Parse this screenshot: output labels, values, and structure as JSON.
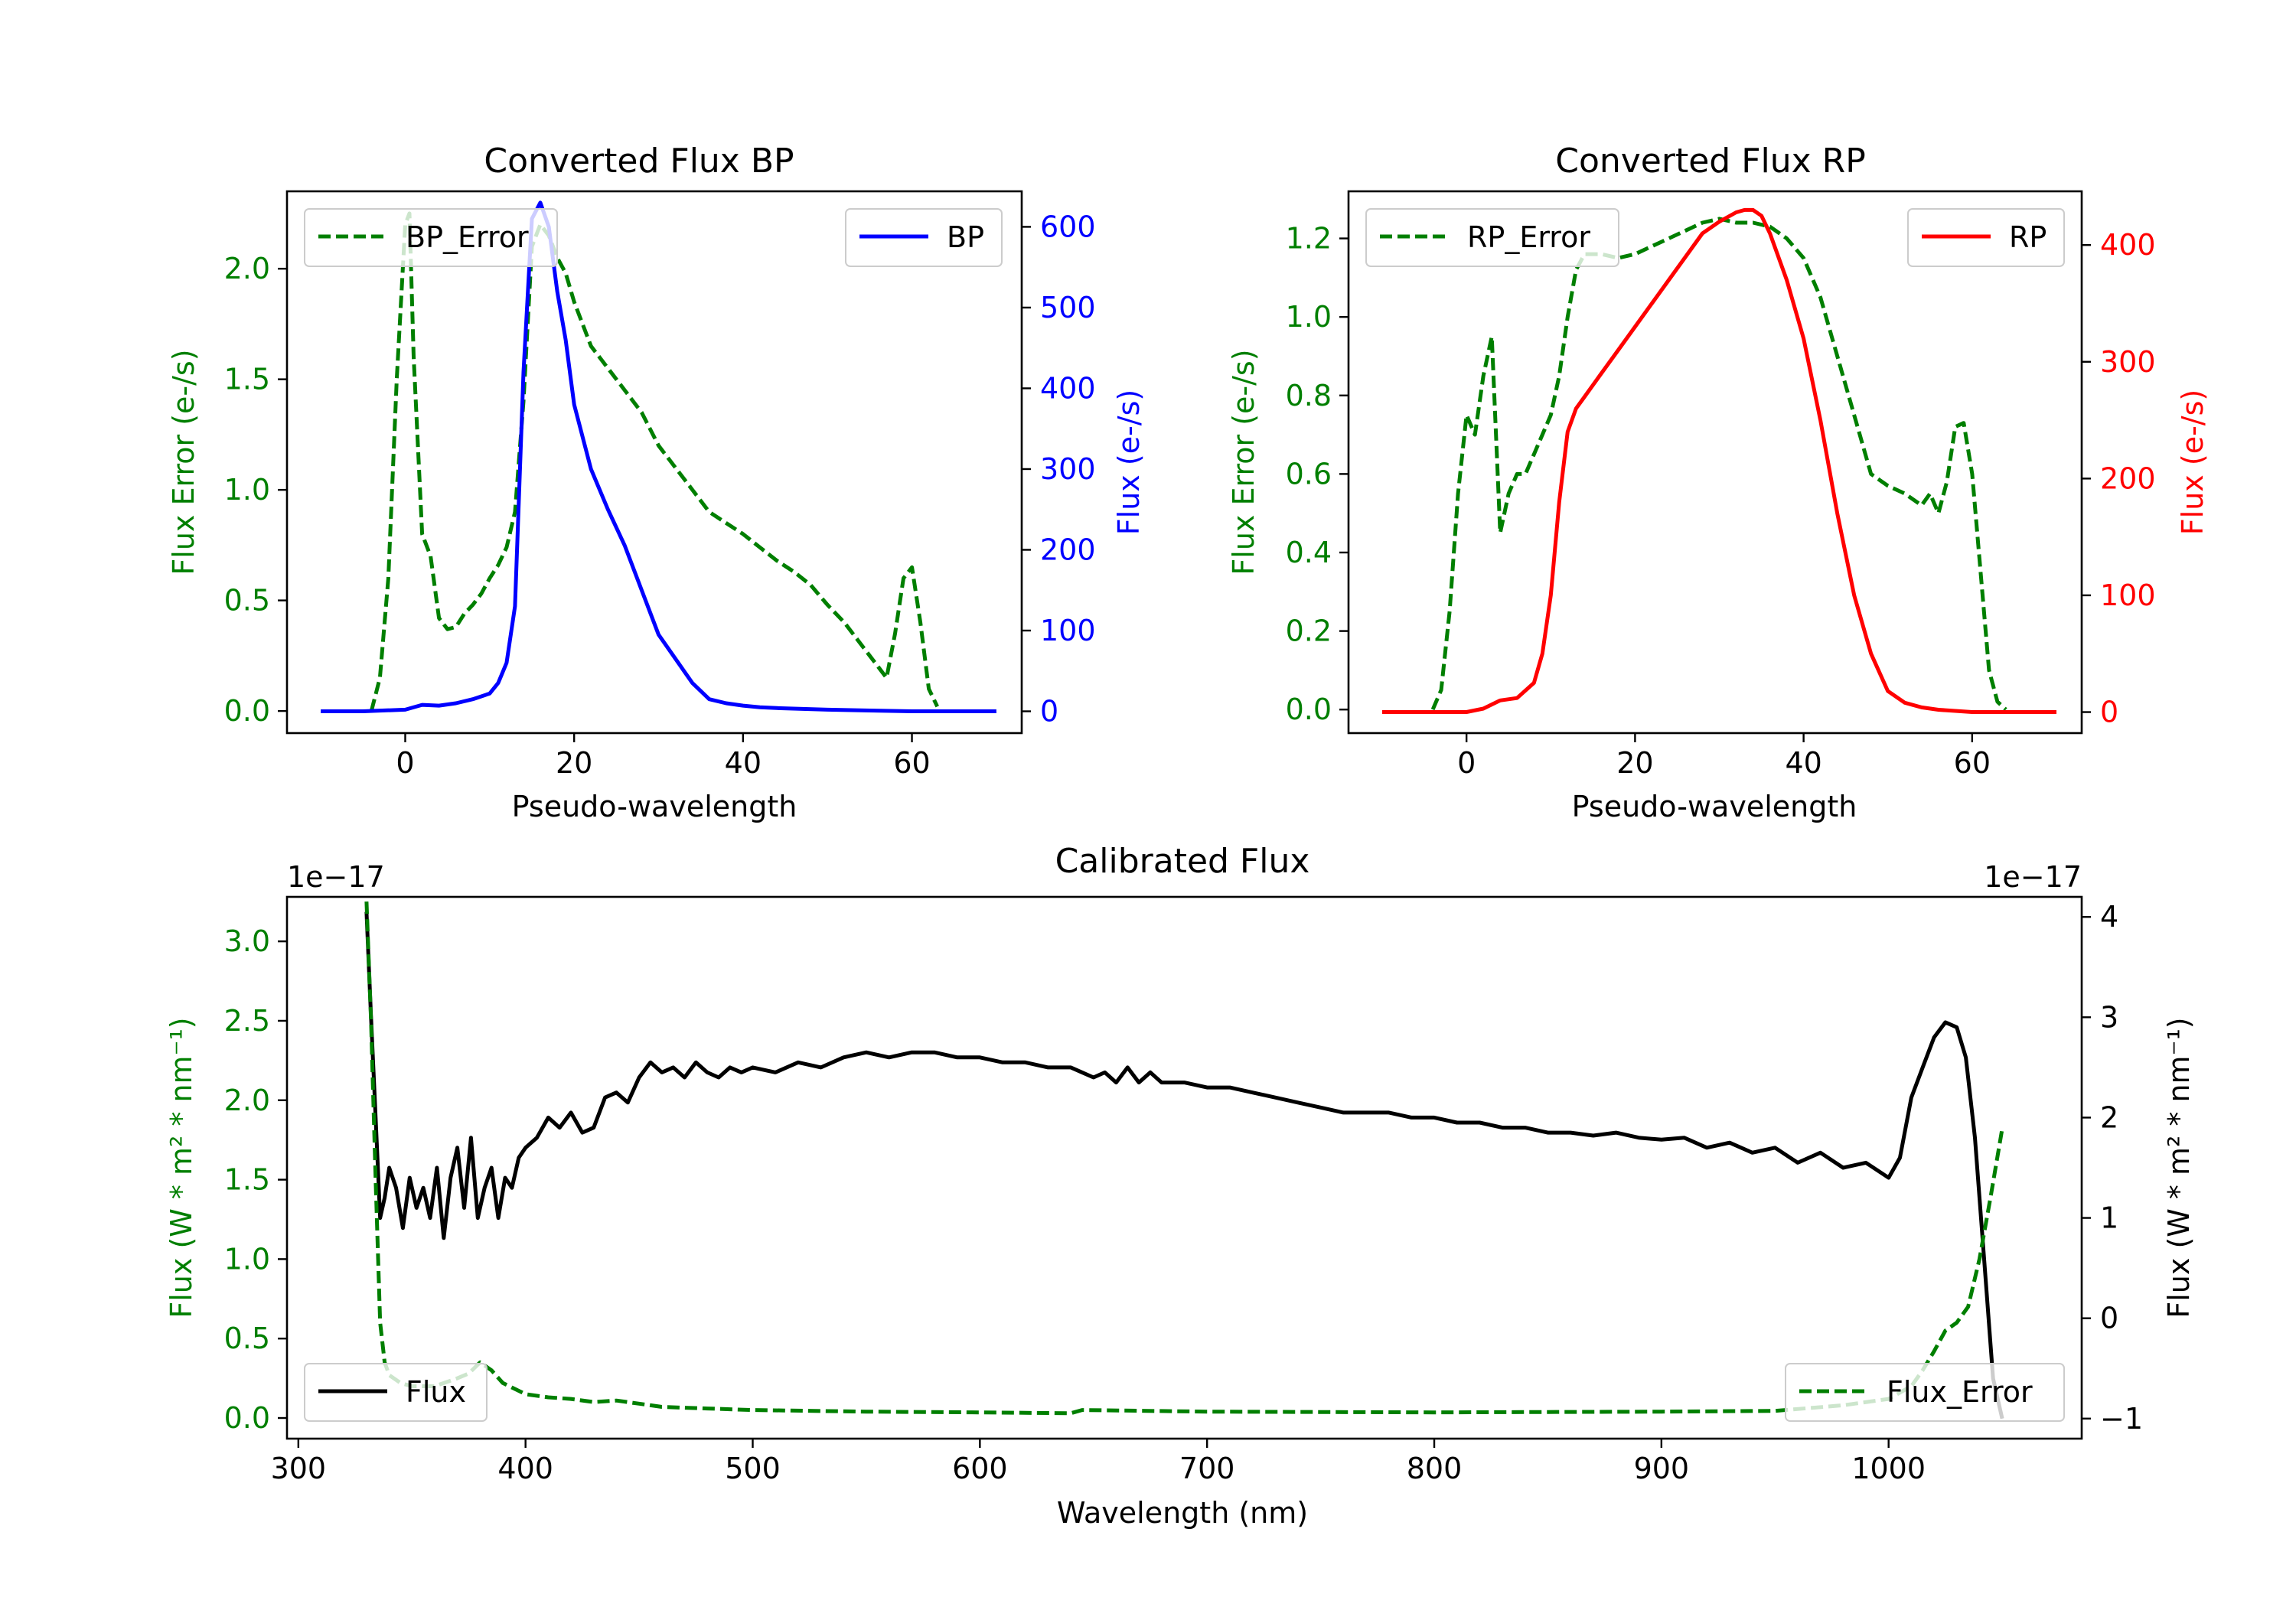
{
  "colors": {
    "error": "#007f00",
    "bp": "#0000ff",
    "rp": "#ff0000",
    "flux": "#000000",
    "axis": "#000000"
  },
  "chart_data": [
    {
      "id": "bp",
      "type": "line",
      "title": "Converted Flux BP",
      "xlabel": "Pseudo-wavelength",
      "ylabel_left": "Flux Error (e-/s)",
      "ylabel_right": "Flux (e-/s)",
      "xlim": [
        -14,
        73
      ],
      "xticks": [
        0,
        20,
        40,
        60
      ],
      "ylim_left": [
        -0.1,
        2.35
      ],
      "yticks_left": [
        0.0,
        0.5,
        1.0,
        1.5,
        2.0
      ],
      "ytick_labels_left": [
        "0.0",
        "0.5",
        "1.0",
        "1.5",
        "2.0"
      ],
      "ylim_right": [
        -27,
        644
      ],
      "yticks_right": [
        0,
        100,
        200,
        300,
        400,
        500,
        600
      ],
      "legend_left": "BP_Error",
      "legend_right": "BP",
      "series": [
        {
          "name": "BP_Error",
          "axis": "left",
          "style": "dashed",
          "color_key": "error",
          "x": [
            -4,
            -3,
            -2,
            -1,
            0,
            0.5,
            1,
            2,
            3,
            4,
            5,
            6,
            7,
            8,
            9,
            10,
            11,
            12,
            13,
            14,
            15,
            16,
            17,
            18,
            19,
            20,
            22,
            24,
            26,
            28,
            30,
            32,
            34,
            36,
            38,
            40,
            42,
            44,
            46,
            48,
            50,
            52,
            54,
            56,
            57,
            58,
            59,
            60,
            61,
            62,
            63
          ],
          "y": [
            0.0,
            0.15,
            0.6,
            1.5,
            2.2,
            2.25,
            1.6,
            0.8,
            0.7,
            0.42,
            0.37,
            0.38,
            0.44,
            0.48,
            0.53,
            0.6,
            0.66,
            0.74,
            0.9,
            1.4,
            2.1,
            2.2,
            2.15,
            2.05,
            1.98,
            1.85,
            1.65,
            1.55,
            1.45,
            1.35,
            1.2,
            1.1,
            1.0,
            0.9,
            0.85,
            0.8,
            0.74,
            0.68,
            0.63,
            0.57,
            0.48,
            0.4,
            0.3,
            0.2,
            0.15,
            0.35,
            0.6,
            0.65,
            0.4,
            0.1,
            0.02
          ]
        },
        {
          "name": "BP",
          "axis": "right",
          "style": "solid",
          "color_key": "bp",
          "x": [
            -10,
            -5,
            0,
            2,
            4,
            6,
            8,
            10,
            11,
            12,
            13,
            14,
            15,
            16,
            17,
            18,
            19,
            20,
            22,
            24,
            26,
            28,
            30,
            32,
            34,
            36,
            38,
            40,
            42,
            44,
            50,
            55,
            60,
            65,
            70
          ],
          "y": [
            0,
            0,
            2,
            8,
            7,
            10,
            15,
            22,
            35,
            60,
            130,
            420,
            610,
            630,
            600,
            520,
            460,
            380,
            300,
            250,
            205,
            150,
            95,
            65,
            35,
            15,
            10,
            7,
            5,
            4,
            2,
            1,
            0,
            0,
            0
          ]
        }
      ]
    },
    {
      "id": "rp",
      "type": "line",
      "title": "Converted Flux RP",
      "xlabel": "Pseudo-wavelength",
      "ylabel_left": "Flux Error (e-/s)",
      "ylabel_right": "Flux (e-/s)",
      "xlim": [
        -14,
        73
      ],
      "xticks": [
        0,
        20,
        40,
        60
      ],
      "ylim_left": [
        -0.06,
        1.32
      ],
      "yticks_left": [
        0.0,
        0.2,
        0.4,
        0.6,
        0.8,
        1.0,
        1.2
      ],
      "ytick_labels_left": [
        "0.0",
        "0.2",
        "0.4",
        "0.6",
        "0.8",
        "1.0",
        "1.2"
      ],
      "ylim_right": [
        -18,
        446
      ],
      "yticks_right": [
        0,
        100,
        200,
        300,
        400
      ],
      "legend_left": "RP_Error",
      "legend_right": "RP",
      "series": [
        {
          "name": "RP_Error",
          "axis": "left",
          "style": "dashed",
          "color_key": "error",
          "x": [
            -4,
            -3,
            -2,
            -1,
            0,
            1,
            2,
            3,
            4,
            5,
            6,
            7,
            8,
            9,
            10,
            11,
            12,
            13,
            14,
            16,
            18,
            20,
            22,
            24,
            26,
            28,
            30,
            32,
            34,
            36,
            38,
            40,
            42,
            44,
            46,
            48,
            50,
            52,
            54,
            55,
            56,
            57,
            58,
            59,
            60,
            61,
            62,
            63,
            64
          ],
          "y": [
            0.0,
            0.05,
            0.25,
            0.55,
            0.75,
            0.7,
            0.85,
            0.95,
            0.45,
            0.55,
            0.6,
            0.6,
            0.65,
            0.7,
            0.75,
            0.85,
            1.0,
            1.12,
            1.16,
            1.16,
            1.15,
            1.16,
            1.18,
            1.2,
            1.22,
            1.24,
            1.25,
            1.24,
            1.24,
            1.23,
            1.2,
            1.15,
            1.05,
            0.9,
            0.75,
            0.6,
            0.57,
            0.55,
            0.52,
            0.55,
            0.5,
            0.58,
            0.72,
            0.73,
            0.6,
            0.35,
            0.1,
            0.02,
            0.0
          ]
        },
        {
          "name": "RP",
          "axis": "right",
          "style": "solid",
          "color_key": "rp",
          "x": [
            -10,
            -5,
            0,
            2,
            4,
            6,
            8,
            9,
            10,
            11,
            12,
            13,
            14,
            15,
            16,
            18,
            20,
            22,
            24,
            26,
            28,
            30,
            32,
            33,
            34,
            35,
            36,
            38,
            40,
            42,
            44,
            46,
            48,
            50,
            52,
            54,
            56,
            60,
            65,
            70
          ],
          "y": [
            0,
            0,
            0,
            3,
            10,
            12,
            25,
            50,
            100,
            180,
            240,
            260,
            270,
            280,
            290,
            310,
            330,
            350,
            370,
            390,
            410,
            420,
            428,
            430,
            430,
            425,
            410,
            370,
            320,
            250,
            170,
            100,
            50,
            18,
            8,
            4,
            2,
            0,
            0,
            0
          ]
        }
      ]
    },
    {
      "id": "calibrated",
      "type": "line",
      "title": "Calibrated Flux",
      "xlabel": "Wavelength (nm)",
      "ylabel_left": "Flux (W * m² * nm⁻¹)",
      "ylabel_right": "Flux (W * m² * nm⁻¹)",
      "offset_left": "1e−17",
      "offset_right": "1e−17",
      "xlim": [
        295,
        1085
      ],
      "xticks": [
        300,
        400,
        500,
        600,
        700,
        800,
        900,
        1000
      ],
      "ylim_left": [
        -0.13,
        3.28
      ],
      "yticks_left": [
        0.0,
        0.5,
        1.0,
        1.5,
        2.0,
        2.5,
        3.0
      ],
      "ytick_labels_left": [
        "0.0",
        "0.5",
        "1.0",
        "1.5",
        "2.0",
        "2.5",
        "3.0"
      ],
      "ylim_right": [
        -1.2,
        4.2
      ],
      "yticks_right": [
        -1,
        0,
        1,
        2,
        3,
        4
      ],
      "ytick_labels_right": [
        "−1",
        "0",
        "1",
        "2",
        "3",
        "4"
      ],
      "legend_left": "Flux",
      "legend_right": "Flux_Error",
      "series": [
        {
          "name": "Flux",
          "axis": "right",
          "style": "solid",
          "color_key": "flux",
          "x": [
            330,
            332,
            334,
            336,
            338,
            340,
            343,
            346,
            349,
            352,
            355,
            358,
            361,
            364,
            367,
            370,
            373,
            376,
            379,
            382,
            385,
            388,
            391,
            394,
            397,
            400,
            405,
            410,
            415,
            420,
            425,
            430,
            435,
            440,
            445,
            450,
            455,
            460,
            465,
            470,
            475,
            480,
            485,
            490,
            495,
            500,
            510,
            520,
            530,
            540,
            550,
            560,
            570,
            580,
            590,
            600,
            610,
            620,
            630,
            640,
            645,
            650,
            655,
            660,
            665,
            670,
            675,
            680,
            690,
            700,
            710,
            720,
            730,
            740,
            750,
            760,
            770,
            780,
            790,
            800,
            810,
            820,
            830,
            840,
            850,
            860,
            870,
            880,
            890,
            900,
            910,
            920,
            930,
            940,
            950,
            960,
            970,
            980,
            990,
            1000,
            1005,
            1010,
            1015,
            1020,
            1025,
            1030,
            1034,
            1038,
            1042,
            1046,
            1050
          ],
          "y": [
            4.05,
            3.0,
            2.0,
            1.0,
            1.2,
            1.5,
            1.3,
            0.9,
            1.4,
            1.1,
            1.3,
            1.0,
            1.5,
            0.8,
            1.4,
            1.7,
            1.1,
            1.8,
            1.0,
            1.3,
            1.5,
            1.0,
            1.4,
            1.3,
            1.6,
            1.7,
            1.8,
            2.0,
            1.9,
            2.05,
            1.85,
            1.9,
            2.2,
            2.25,
            2.15,
            2.4,
            2.55,
            2.45,
            2.5,
            2.4,
            2.55,
            2.45,
            2.4,
            2.5,
            2.45,
            2.5,
            2.45,
            2.55,
            2.5,
            2.6,
            2.65,
            2.6,
            2.65,
            2.65,
            2.6,
            2.6,
            2.55,
            2.55,
            2.5,
            2.5,
            2.45,
            2.4,
            2.45,
            2.35,
            2.5,
            2.35,
            2.45,
            2.35,
            2.35,
            2.3,
            2.3,
            2.25,
            2.2,
            2.15,
            2.1,
            2.05,
            2.05,
            2.05,
            2.0,
            2.0,
            1.95,
            1.95,
            1.9,
            1.9,
            1.85,
            1.85,
            1.82,
            1.85,
            1.8,
            1.78,
            1.8,
            1.7,
            1.75,
            1.65,
            1.7,
            1.55,
            1.65,
            1.5,
            1.55,
            1.4,
            1.6,
            2.2,
            2.5,
            2.8,
            2.95,
            2.9,
            2.6,
            1.8,
            0.6,
            -0.6,
            -1.0
          ]
        },
        {
          "name": "Flux_Error",
          "axis": "left",
          "style": "dashed",
          "color_key": "error",
          "x": [
            330,
            332,
            334,
            336,
            338,
            340,
            345,
            350,
            360,
            370,
            375,
            380,
            385,
            390,
            400,
            410,
            420,
            430,
            440,
            450,
            460,
            480,
            500,
            550,
            600,
            640,
            645,
            700,
            800,
            900,
            950,
            980,
            1000,
            1010,
            1015,
            1020,
            1025,
            1030,
            1035,
            1040,
            1045,
            1050
          ],
          "y": [
            3.25,
            2.5,
            1.5,
            0.6,
            0.35,
            0.27,
            0.22,
            0.2,
            0.2,
            0.25,
            0.28,
            0.35,
            0.3,
            0.22,
            0.15,
            0.13,
            0.12,
            0.1,
            0.11,
            0.09,
            0.07,
            0.06,
            0.05,
            0.04,
            0.035,
            0.03,
            0.05,
            0.04,
            0.035,
            0.04,
            0.045,
            0.08,
            0.12,
            0.2,
            0.3,
            0.42,
            0.55,
            0.6,
            0.7,
            1.0,
            1.4,
            1.82
          ]
        }
      ]
    }
  ]
}
